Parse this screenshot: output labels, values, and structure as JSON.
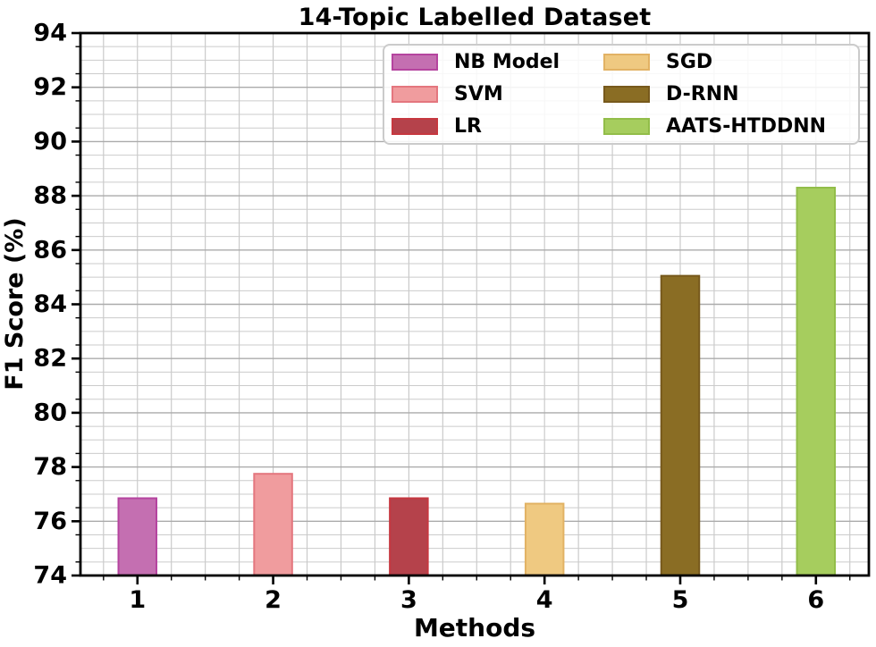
{
  "figure": {
    "title": "14-Topic Labelled Dataset",
    "xlabel": "Methods",
    "ylabel": "F1 Score (%)"
  },
  "chart_data": {
    "type": "bar",
    "title": "14-Topic Labelled Dataset",
    "xlabel": "Methods",
    "ylabel": "F1 Score (%)",
    "categories": [
      1,
      2,
      3,
      4,
      5,
      6
    ],
    "series": [
      {
        "name": "NB Model",
        "x": 1,
        "value": 76.85,
        "color": "#c46fb1",
        "edge_color": "#b5449f"
      },
      {
        "name": "SVM",
        "x": 2,
        "value": 77.75,
        "color": "#f09c9e",
        "edge_color": "#e4767e"
      },
      {
        "name": "LR",
        "x": 3,
        "value": 76.85,
        "color": "#b5424b",
        "edge_color": "#c63840"
      },
      {
        "name": "SGD",
        "x": 4,
        "value": 76.65,
        "color": "#efc981",
        "edge_color": "#e2b264"
      },
      {
        "name": "D-RNN",
        "x": 5,
        "value": 85.05,
        "color": "#8a6d24",
        "edge_color": "#77591c"
      },
      {
        "name": "AATS-HTDDNN",
        "x": 6,
        "value": 88.3,
        "color": "#a6cd5e",
        "edge_color": "#92bd49"
      }
    ],
    "ylim": [
      74,
      94
    ],
    "xlim": [
      0.58,
      6.39
    ],
    "y_ticks": [
      74,
      76,
      78,
      80,
      82,
      84,
      86,
      88,
      90,
      92,
      94
    ],
    "x_ticks": [
      1,
      2,
      3,
      4,
      5,
      6
    ],
    "y_minor_step": 0.5,
    "x_minor_step": 0.25,
    "grid": "both",
    "legend_position": "upper right",
    "bar_width": 0.28
  },
  "colors": {
    "grid_minor": "#cbcbcb",
    "grid_major": "#ababab",
    "grid_vertical": "#c6c6c6",
    "spine": "#000000",
    "tick": "#000000",
    "text": "#000000",
    "legend_border": "#cbcbcb"
  }
}
